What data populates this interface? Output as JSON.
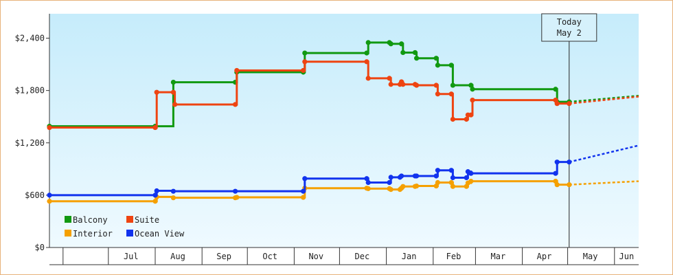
{
  "chart_data": {
    "type": "line",
    "step": true,
    "y_ticks": [
      {
        "value": 0,
        "label": "$0"
      },
      {
        "value": 600,
        "label": "$600"
      },
      {
        "value": 1200,
        "label": "$1,200"
      },
      {
        "value": 1800,
        "label": "$1,800"
      },
      {
        "value": 2400,
        "label": "$2,400"
      }
    ],
    "ylim": [
      0,
      2680
    ],
    "xlim": [
      "2024-05-23",
      "2025-06-17"
    ],
    "month_labels": [
      {
        "label": "Jul",
        "start": "2024-07-01",
        "end": "2024-07-31"
      },
      {
        "label": "Aug",
        "start": "2024-08-01",
        "end": "2024-08-31"
      },
      {
        "label": "Sep",
        "start": "2024-09-01",
        "end": "2024-09-30"
      },
      {
        "label": "Oct",
        "start": "2024-10-01",
        "end": "2024-10-31"
      },
      {
        "label": "Nov",
        "start": "2024-11-01",
        "end": "2024-11-30"
      },
      {
        "label": "Dec",
        "start": "2024-12-01",
        "end": "2024-12-31"
      },
      {
        "label": "Jan",
        "start": "2025-01-01",
        "end": "2025-01-31"
      },
      {
        "label": "Feb",
        "start": "2025-02-01",
        "end": "2025-02-28"
      },
      {
        "label": "Mar",
        "start": "2025-03-01",
        "end": "2025-03-31"
      },
      {
        "label": "Apr",
        "start": "2025-04-01",
        "end": "2025-04-30"
      },
      {
        "label": "May",
        "start": "2025-05-01",
        "end": "2025-05-31"
      },
      {
        "label": "Jun",
        "start": "2025-06-01",
        "end": "2025-06-17"
      }
    ],
    "month_boundaries": [
      "2024-06-01",
      "2024-07-01",
      "2024-08-01",
      "2024-09-01",
      "2024-10-01",
      "2024-11-01",
      "2024-12-01",
      "2025-01-01",
      "2025-02-01",
      "2025-03-01",
      "2025-04-01",
      "2025-05-01",
      "2025-06-01"
    ],
    "today": {
      "label_line1": "Today",
      "label_line2": "May 2",
      "date": "2025-05-02"
    },
    "grid": false,
    "legend": "bottom-left",
    "series": [
      {
        "name": "Balcony",
        "color": "#119911",
        "points": [
          [
            "2024-05-23",
            1390
          ],
          [
            "2024-08-01",
            1390
          ],
          [
            "2024-08-13",
            1895
          ],
          [
            "2024-09-23",
            1895
          ],
          [
            "2024-09-24",
            2010
          ],
          [
            "2024-11-07",
            2010
          ],
          [
            "2024-11-08",
            2230
          ],
          [
            "2024-12-19",
            2230
          ],
          [
            "2024-12-20",
            2350
          ],
          [
            "2025-01-03",
            2350
          ],
          [
            "2025-01-04",
            2335
          ],
          [
            "2025-01-11",
            2335
          ],
          [
            "2025-01-12",
            2235
          ],
          [
            "2025-01-20",
            2235
          ],
          [
            "2025-01-21",
            2170
          ],
          [
            "2025-02-03",
            2170
          ],
          [
            "2025-02-04",
            2090
          ],
          [
            "2025-02-13",
            2090
          ],
          [
            "2025-02-14",
            1860
          ],
          [
            "2025-02-26",
            1860
          ],
          [
            "2025-02-27",
            1815
          ],
          [
            "2025-04-23",
            1815
          ],
          [
            "2025-04-24",
            1670
          ],
          [
            "2025-05-02",
            1670
          ]
        ],
        "projection": [
          [
            "2025-05-02",
            1670
          ],
          [
            "2025-06-17",
            1740
          ]
        ]
      },
      {
        "name": "Suite",
        "color": "#ee4411",
        "points": [
          [
            "2024-05-23",
            1375
          ],
          [
            "2024-08-01",
            1375
          ],
          [
            "2024-08-02",
            1780
          ],
          [
            "2024-08-13",
            1780
          ],
          [
            "2024-08-14",
            1640
          ],
          [
            "2024-09-23",
            1640
          ],
          [
            "2024-09-24",
            2030
          ],
          [
            "2024-11-07",
            2030
          ],
          [
            "2024-11-08",
            2130
          ],
          [
            "2024-12-19",
            2130
          ],
          [
            "2024-12-20",
            1940
          ],
          [
            "2025-01-03",
            1940
          ],
          [
            "2025-01-04",
            1870
          ],
          [
            "2025-01-10",
            1870
          ],
          [
            "2025-01-11",
            1900
          ],
          [
            "2025-01-12",
            1870
          ],
          [
            "2025-01-20",
            1870
          ],
          [
            "2025-01-21",
            1860
          ],
          [
            "2025-02-03",
            1860
          ],
          [
            "2025-02-04",
            1760
          ],
          [
            "2025-02-13",
            1760
          ],
          [
            "2025-02-14",
            1470
          ],
          [
            "2025-02-23",
            1470
          ],
          [
            "2025-02-24",
            1520
          ],
          [
            "2025-02-26",
            1520
          ],
          [
            "2025-02-27",
            1690
          ],
          [
            "2025-04-23",
            1690
          ],
          [
            "2025-04-24",
            1650
          ],
          [
            "2025-05-02",
            1650
          ]
        ],
        "projection": [
          [
            "2025-05-02",
            1650
          ],
          [
            "2025-06-17",
            1730
          ]
        ]
      },
      {
        "name": "Interior",
        "color": "#f5a000",
        "points": [
          [
            "2024-05-23",
            530
          ],
          [
            "2024-08-01",
            530
          ],
          [
            "2024-08-02",
            580
          ],
          [
            "2024-08-13",
            570
          ],
          [
            "2024-09-23",
            570
          ],
          [
            "2024-09-24",
            575
          ],
          [
            "2024-11-07",
            575
          ],
          [
            "2024-11-08",
            680
          ],
          [
            "2024-12-19",
            680
          ],
          [
            "2024-12-20",
            675
          ],
          [
            "2025-01-03",
            675
          ],
          [
            "2025-01-04",
            665
          ],
          [
            "2025-01-10",
            665
          ],
          [
            "2025-01-11",
            680
          ],
          [
            "2025-01-12",
            700
          ],
          [
            "2025-01-20",
            700
          ],
          [
            "2025-01-21",
            705
          ],
          [
            "2025-02-03",
            705
          ],
          [
            "2025-02-04",
            745
          ],
          [
            "2025-02-13",
            745
          ],
          [
            "2025-02-14",
            700
          ],
          [
            "2025-02-23",
            700
          ],
          [
            "2025-02-24",
            740
          ],
          [
            "2025-02-26",
            760
          ],
          [
            "2025-04-23",
            760
          ],
          [
            "2025-04-24",
            720
          ],
          [
            "2025-05-02",
            720
          ]
        ],
        "projection": [
          [
            "2025-05-02",
            720
          ],
          [
            "2025-06-17",
            760
          ]
        ]
      },
      {
        "name": "Ocean View",
        "color": "#1133ee",
        "points": [
          [
            "2024-05-23",
            600
          ],
          [
            "2024-08-01",
            600
          ],
          [
            "2024-08-02",
            650
          ],
          [
            "2024-08-13",
            645
          ],
          [
            "2024-09-23",
            645
          ],
          [
            "2024-11-07",
            645
          ],
          [
            "2024-11-08",
            790
          ],
          [
            "2024-12-19",
            790
          ],
          [
            "2024-12-20",
            745
          ],
          [
            "2025-01-03",
            745
          ],
          [
            "2025-01-04",
            805
          ],
          [
            "2025-01-10",
            805
          ],
          [
            "2025-01-11",
            820
          ],
          [
            "2025-01-20",
            820
          ],
          [
            "2025-01-21",
            820
          ],
          [
            "2025-02-03",
            820
          ],
          [
            "2025-02-04",
            885
          ],
          [
            "2025-02-13",
            885
          ],
          [
            "2025-02-14",
            800
          ],
          [
            "2025-02-23",
            800
          ],
          [
            "2025-02-24",
            870
          ],
          [
            "2025-02-26",
            850
          ],
          [
            "2025-04-23",
            850
          ],
          [
            "2025-04-24",
            980
          ],
          [
            "2025-05-02",
            980
          ]
        ],
        "projection": [
          [
            "2025-05-02",
            980
          ],
          [
            "2025-06-17",
            1170
          ]
        ]
      }
    ]
  }
}
